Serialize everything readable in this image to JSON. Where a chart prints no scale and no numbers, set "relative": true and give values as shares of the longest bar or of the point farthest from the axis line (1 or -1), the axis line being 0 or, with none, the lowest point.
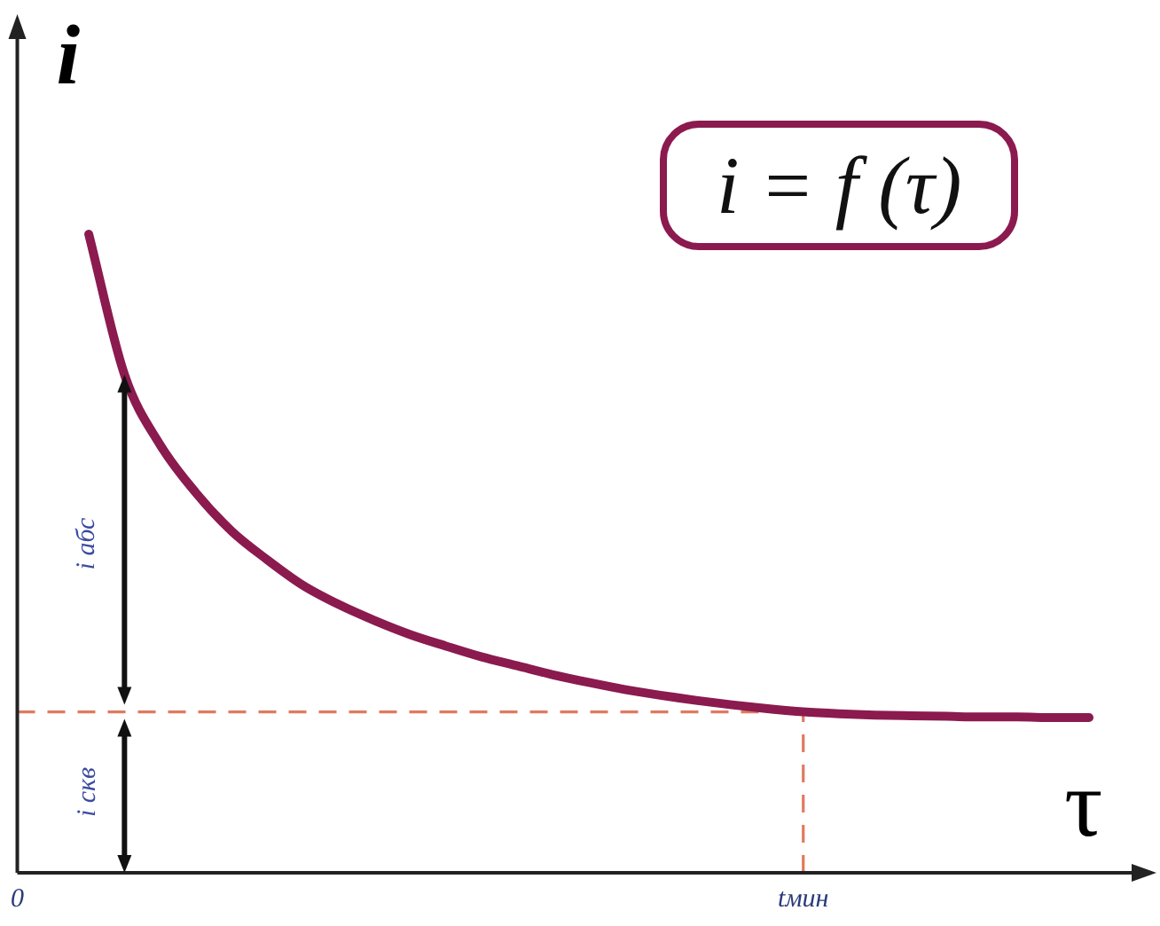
{
  "chart_data": {
    "type": "line",
    "relative": true,
    "xlabel": "τ",
    "ylabel": "i",
    "categories": [
      "0",
      null,
      null,
      null,
      null,
      null,
      null,
      null,
      null,
      null,
      null,
      null,
      null,
      null,
      null,
      null,
      null,
      null,
      null,
      null,
      null,
      null,
      "tмин",
      null,
      null,
      null,
      null,
      null,
      null,
      null,
      null
    ],
    "series": [
      {
        "color": "#8b1a4f",
        "values": [
          null,
          null,
          1.0,
          0.78,
          0.67,
          0.595,
          0.535,
          0.49,
          0.45,
          0.42,
          0.395,
          0.373,
          0.355,
          0.338,
          0.324,
          0.31,
          0.298,
          0.287,
          0.278,
          0.27,
          0.263,
          0.257,
          0.252,
          0.249,
          0.247,
          0.246,
          0.245,
          0.244,
          0.244,
          0.243,
          0.243
        ]
      }
    ],
    "ref_lines": [
      {
        "axis": "y",
        "value": 0.252,
        "color": "#e07a5f",
        "line_style": "dashed"
      },
      {
        "axis": "x",
        "value": "tмин",
        "color": "#e07a5f",
        "line_style": "dashed"
      }
    ],
    "annotations": [
      "i = f (τ)",
      "i абс",
      "i скв"
    ],
    "grid": false,
    "legend": false,
    "marker": "none",
    "line_style": "solid"
  }
}
